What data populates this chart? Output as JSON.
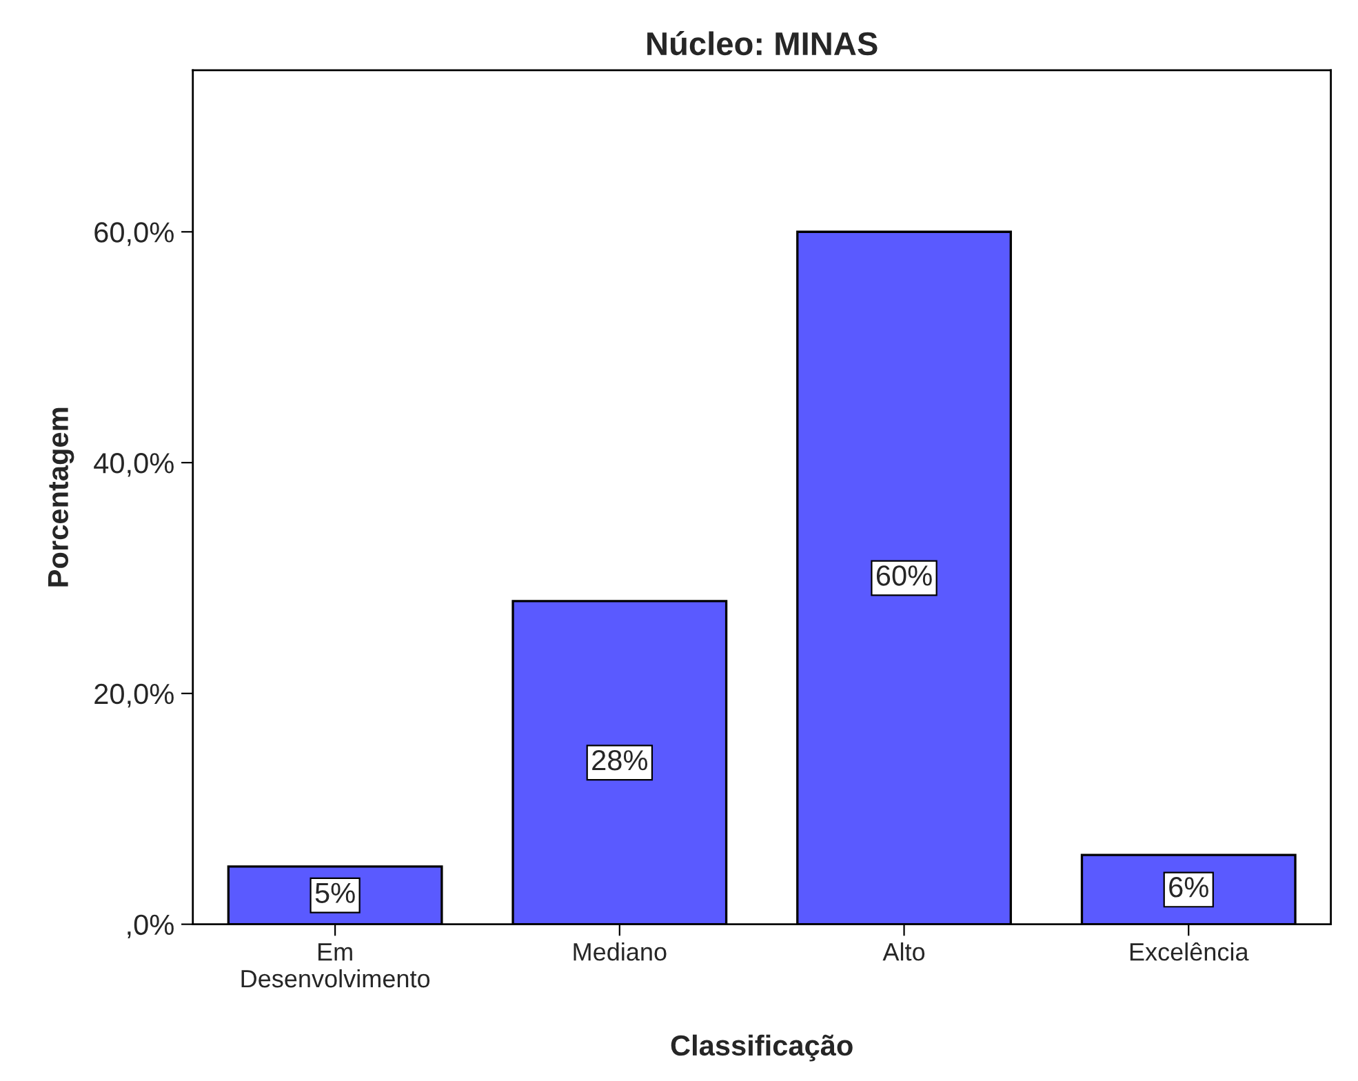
{
  "chart_data": {
    "type": "bar",
    "title": "Núcleo: MINAS",
    "xlabel": "Classificação",
    "ylabel": "Porcentagem",
    "categories": [
      "Em\nDesenvolvimento",
      "Mediano",
      "Alto",
      "Excelência"
    ],
    "values": [
      5,
      28,
      60,
      6
    ],
    "value_labels": [
      "5%",
      "28%",
      "60%",
      "6%"
    ],
    "color": "#5a5aff",
    "ylim": [
      0,
      74
    ],
    "yticks": [
      {
        "value": 0,
        "label": ",0%"
      },
      {
        "value": 20,
        "label": "20,0%"
      },
      {
        "value": 40,
        "label": "40,0%"
      },
      {
        "value": 60,
        "label": "60,0%"
      }
    ],
    "grid": false,
    "legend": false
  }
}
